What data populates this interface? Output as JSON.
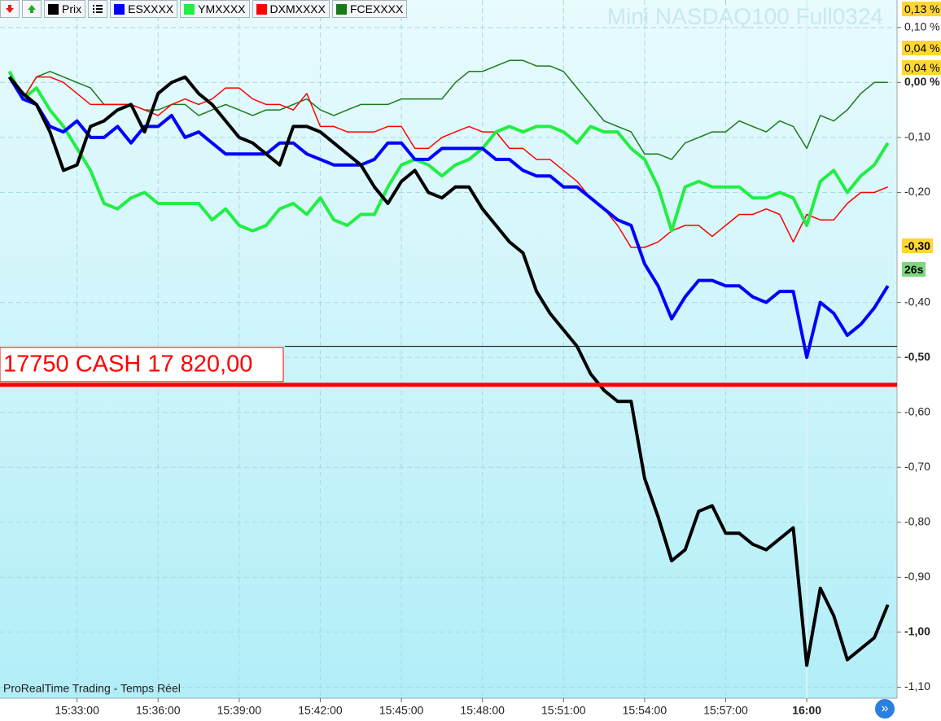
{
  "chart_data": {
    "type": "line",
    "title": "Mini NASDAQ100 Full0324",
    "footer": "ProRealTime Trading - Temps Réel",
    "price_line": {
      "label": "17750 CASH 17 820,00",
      "value": -0.55,
      "color": "#ff0000"
    },
    "reference_line": -0.48,
    "right_badges": [
      "0,13 %",
      "0,04 %",
      "0,04 %",
      "-0,30",
      "26s"
    ],
    "x": [
      930.5,
      931,
      931.5,
      932,
      932.5,
      933,
      933.5,
      934,
      934.5,
      935,
      935.5,
      936,
      936.5,
      937,
      937.5,
      938,
      938.5,
      939,
      939.5,
      940,
      940.5,
      941,
      941.5,
      942,
      942.5,
      943,
      943.5,
      944,
      944.5,
      945,
      945.5,
      946,
      946.5,
      947,
      947.5,
      948,
      948.5,
      949,
      949.5,
      950,
      950.5,
      951,
      951.5,
      952,
      952.5,
      953,
      953.5,
      954,
      954.5,
      955,
      955.5,
      956,
      956.5,
      957,
      957.5,
      958,
      958.5,
      959,
      959.5,
      960,
      960.5,
      961,
      961.5,
      962,
      962.5,
      963
    ],
    "xlim": [
      930.15,
      963.34
    ],
    "xticks": [
      {
        "value": 933,
        "label": "15:33:00"
      },
      {
        "value": 936,
        "label": "15:36:00"
      },
      {
        "value": 939,
        "label": "15:39:00"
      },
      {
        "value": 942,
        "label": "15:42:00"
      },
      {
        "value": 945,
        "label": "15:45:00"
      },
      {
        "value": 948,
        "label": "15:48:00"
      },
      {
        "value": 951,
        "label": "15:51:00"
      },
      {
        "value": 954,
        "label": "15:54:00"
      },
      {
        "value": 957,
        "label": "15:57:00"
      },
      {
        "value": 960,
        "label": "16:00"
      }
    ],
    "ylim": [
      -1.12,
      0.15
    ],
    "yticks": [
      {
        "value": 0.1,
        "label": "0,10 %"
      },
      {
        "value": 0,
        "label": "0,00 %"
      },
      {
        "value": -0.1,
        "label": "-0,10"
      },
      {
        "value": -0.2,
        "label": "-0,20"
      },
      {
        "value": -0.4,
        "label": "-0,40"
      },
      {
        "value": -0.5,
        "label": "-0,50"
      },
      {
        "value": -0.6,
        "label": "-0,60"
      },
      {
        "value": -0.7,
        "label": "-0,70"
      },
      {
        "value": -0.8,
        "label": "-0,80"
      },
      {
        "value": -0.9,
        "label": "-0,90"
      },
      {
        "value": -1.0,
        "label": "-1,00"
      },
      {
        "value": -1.1,
        "label": "-1,10"
      }
    ],
    "grid": true,
    "series": [
      {
        "name": "Prix",
        "color": "#000000",
        "width": 4,
        "values": [
          0.01,
          -0.02,
          -0.04,
          -0.09,
          -0.16,
          -0.15,
          -0.08,
          -0.07,
          -0.05,
          -0.04,
          -0.09,
          -0.02,
          0.0,
          0.01,
          -0.02,
          -0.04,
          -0.07,
          -0.1,
          -0.11,
          -0.13,
          -0.15,
          -0.08,
          -0.08,
          -0.09,
          -0.11,
          -0.13,
          -0.15,
          -0.19,
          -0.22,
          -0.18,
          -0.16,
          -0.2,
          -0.21,
          -0.19,
          -0.19,
          -0.23,
          -0.26,
          -0.29,
          -0.31,
          -0.38,
          -0.42,
          -0.45,
          -0.48,
          -0.53,
          -0.56,
          -0.58,
          -0.58,
          -0.72,
          -0.79,
          -0.87,
          -0.85,
          -0.78,
          -0.77,
          -0.82,
          -0.82,
          -0.84,
          -0.85,
          -0.83,
          -0.81,
          -1.06,
          -0.92,
          -0.97,
          -1.05,
          -1.03,
          -1.01,
          -0.95
        ]
      },
      {
        "name": "ESXXXX",
        "color": "#0000ff",
        "width": 4,
        "values": [
          0.01,
          -0.03,
          -0.04,
          -0.08,
          -0.09,
          -0.07,
          -0.1,
          -0.1,
          -0.08,
          -0.11,
          -0.08,
          -0.08,
          -0.06,
          -0.1,
          -0.09,
          -0.11,
          -0.13,
          -0.13,
          -0.13,
          -0.13,
          -0.11,
          -0.11,
          -0.13,
          -0.14,
          -0.15,
          -0.15,
          -0.15,
          -0.14,
          -0.11,
          -0.11,
          -0.14,
          -0.14,
          -0.12,
          -0.12,
          -0.12,
          -0.12,
          -0.14,
          -0.14,
          -0.16,
          -0.17,
          -0.17,
          -0.19,
          -0.19,
          -0.21,
          -0.23,
          -0.25,
          -0.26,
          -0.33,
          -0.37,
          -0.43,
          -0.39,
          -0.36,
          -0.36,
          -0.37,
          -0.37,
          -0.39,
          -0.4,
          -0.38,
          -0.38,
          -0.5,
          -0.4,
          -0.42,
          -0.46,
          -0.44,
          -0.41,
          -0.37
        ]
      },
      {
        "name": "YMXXXX",
        "color": "#22ee44",
        "width": 4,
        "values": [
          0.02,
          -0.03,
          -0.01,
          -0.05,
          -0.08,
          -0.12,
          -0.16,
          -0.22,
          -0.23,
          -0.21,
          -0.2,
          -0.22,
          -0.22,
          -0.22,
          -0.22,
          -0.25,
          -0.23,
          -0.26,
          -0.27,
          -0.26,
          -0.23,
          -0.22,
          -0.24,
          -0.21,
          -0.25,
          -0.26,
          -0.24,
          -0.24,
          -0.19,
          -0.15,
          -0.14,
          -0.15,
          -0.17,
          -0.15,
          -0.14,
          -0.12,
          -0.09,
          -0.08,
          -0.09,
          -0.08,
          -0.08,
          -0.09,
          -0.11,
          -0.08,
          -0.09,
          -0.09,
          -0.12,
          -0.14,
          -0.19,
          -0.27,
          -0.19,
          -0.18,
          -0.19,
          -0.19,
          -0.19,
          -0.21,
          -0.21,
          -0.2,
          -0.21,
          -0.26,
          -0.18,
          -0.16,
          -0.2,
          -0.17,
          -0.15,
          -0.11
        ]
      },
      {
        "name": "DXMXXXX",
        "color": "#ff0000",
        "width": 1.5,
        "values": [
          0.01,
          -0.03,
          0.01,
          0.01,
          0.0,
          -0.02,
          -0.04,
          -0.04,
          -0.04,
          -0.04,
          -0.05,
          -0.06,
          -0.04,
          -0.03,
          -0.04,
          -0.03,
          -0.01,
          -0.01,
          -0.03,
          -0.04,
          -0.04,
          -0.05,
          -0.02,
          -0.08,
          -0.08,
          -0.09,
          -0.09,
          -0.09,
          -0.08,
          -0.08,
          -0.12,
          -0.12,
          -0.1,
          -0.09,
          -0.08,
          -0.09,
          -0.09,
          -0.12,
          -0.12,
          -0.14,
          -0.14,
          -0.16,
          -0.18,
          -0.21,
          -0.23,
          -0.26,
          -0.3,
          -0.3,
          -0.29,
          -0.27,
          -0.26,
          -0.26,
          -0.28,
          -0.26,
          -0.24,
          -0.24,
          -0.23,
          -0.24,
          -0.29,
          -0.24,
          -0.25,
          -0.25,
          -0.22,
          -0.2,
          -0.2,
          -0.19
        ]
      },
      {
        "name": "FCEXXXX",
        "color": "#1a7a1a",
        "width": 1.5,
        "values": [
          0.02,
          -0.03,
          0.01,
          0.02,
          0.01,
          0.0,
          -0.01,
          -0.04,
          -0.04,
          -0.04,
          -0.05,
          -0.05,
          -0.04,
          -0.04,
          -0.06,
          -0.05,
          -0.04,
          -0.05,
          -0.06,
          -0.05,
          -0.05,
          -0.04,
          -0.03,
          -0.05,
          -0.06,
          -0.05,
          -0.04,
          -0.04,
          -0.04,
          -0.03,
          -0.03,
          -0.03,
          -0.03,
          0.0,
          0.02,
          0.02,
          0.03,
          0.04,
          0.04,
          0.03,
          0.03,
          0.02,
          -0.01,
          -0.04,
          -0.07,
          -0.08,
          -0.09,
          -0.13,
          -0.13,
          -0.14,
          -0.11,
          -0.1,
          -0.09,
          -0.09,
          -0.07,
          -0.08,
          -0.09,
          -0.07,
          -0.08,
          -0.12,
          -0.06,
          -0.07,
          -0.05,
          -0.02,
          0.0,
          0.0
        ]
      }
    ]
  }
}
